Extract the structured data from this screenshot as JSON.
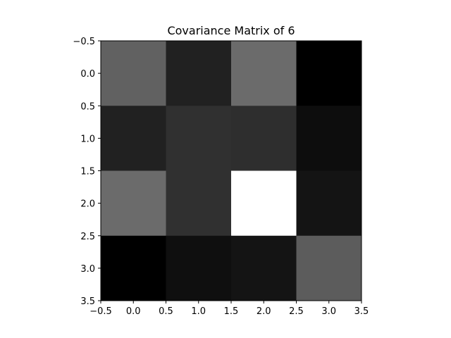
{
  "chart_data": {
    "type": "heatmap",
    "title": "Covariance Matrix of 6",
    "xlabel": "",
    "ylabel": "",
    "colormap": "gray",
    "xlim": [
      -0.5,
      3.5
    ],
    "ylim": [
      3.5,
      -0.5
    ],
    "y_inverted": true,
    "grid": false,
    "x_ticks": [
      -0.5,
      0.0,
      0.5,
      1.0,
      1.5,
      2.0,
      2.5,
      3.0,
      3.5
    ],
    "y_ticks": [
      -0.5,
      0.0,
      0.5,
      1.0,
      1.5,
      2.0,
      2.5,
      3.0,
      3.5
    ],
    "x_tick_labels": [
      "−0.5",
      "0.0",
      "0.5",
      "1.0",
      "1.5",
      "2.0",
      "2.5",
      "3.0",
      "3.5"
    ],
    "y_tick_labels": [
      "−0.5",
      "0.0",
      "0.5",
      "1.0",
      "1.5",
      "2.0",
      "2.5",
      "3.0",
      "3.5"
    ],
    "matrix": [
      [
        0.38,
        0.13,
        0.42,
        0.0
      ],
      [
        0.13,
        0.19,
        0.18,
        0.05
      ],
      [
        0.42,
        0.19,
        1.0,
        0.08
      ],
      [
        0.0,
        0.06,
        0.08,
        0.36
      ]
    ]
  }
}
